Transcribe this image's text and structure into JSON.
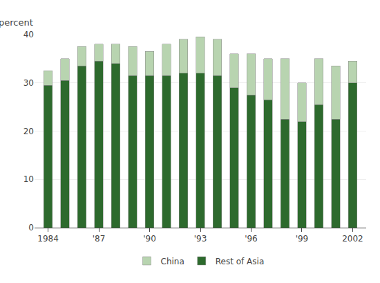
{
  "chart_data": {
    "type": "bar",
    "stacked": true,
    "ylabel": "percent",
    "x": [
      1984,
      1985,
      1986,
      1987,
      1988,
      1989,
      1990,
      1991,
      1992,
      1993,
      1994,
      1995,
      1996,
      1997,
      1998,
      1999,
      2000,
      2001,
      2002
    ],
    "series": [
      {
        "name": "Rest of Asia",
        "color": "#2d6a2d",
        "values": [
          29.5,
          30.5,
          33.5,
          34.5,
          34.0,
          31.5,
          31.5,
          31.5,
          32.0,
          32.0,
          31.5,
          29.0,
          27.5,
          26.5,
          22.5,
          22.0,
          25.5,
          22.5,
          30.0
        ]
      },
      {
        "name": "China",
        "color": "#b8d4b0",
        "values": [
          3.0,
          4.5,
          4.0,
          3.5,
          4.0,
          6.0,
          5.0,
          6.5,
          7.0,
          7.5,
          7.5,
          7.0,
          8.5,
          8.5,
          12.5,
          8.0,
          9.5,
          11.0,
          4.5
        ]
      }
    ],
    "xlim": [
      1983.2,
      2002.8
    ],
    "xticks": [
      1984,
      {
        "value": 1987,
        "label": "'87"
      },
      {
        "value": 1990,
        "label": "'90"
      },
      {
        "value": 1993,
        "label": "'93"
      },
      {
        "value": 1996,
        "label": "'96"
      },
      {
        "value": 1999,
        "label": "'99"
      },
      2002
    ],
    "ylim": [
      0,
      40
    ],
    "yticks": [
      0,
      10,
      20,
      30,
      40
    ],
    "grid": true,
    "legend": "bottom"
  }
}
